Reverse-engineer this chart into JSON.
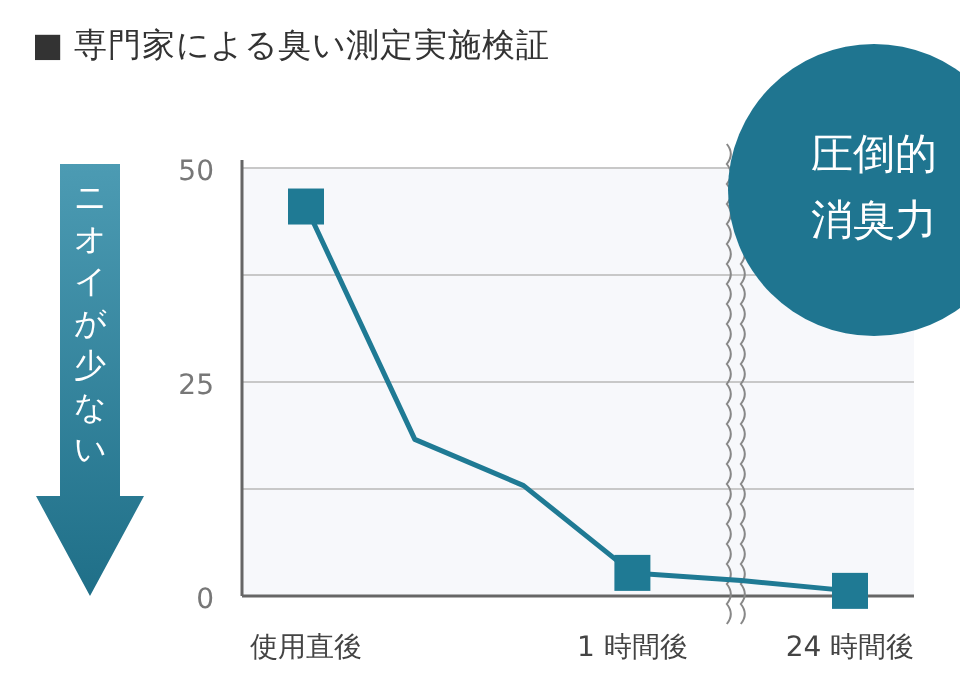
{
  "chart_data": {
    "type": "line",
    "title": "■ 専門家による臭い測定実施検証",
    "categories": [
      "使用直後",
      null,
      null,
      "1 時間後",
      null,
      "24 時間後"
    ],
    "series": [
      {
        "color": "#1f7a94",
        "values": [
          45.5,
          18.3,
          12.9,
          2.7,
          1.8,
          0.6
        ]
      }
    ],
    "ylim": [
      0,
      50
    ],
    "yticks": [
      0,
      {
        "value": 12.5,
        "label": null
      },
      25,
      {
        "value": 37.5,
        "label": null
      },
      50
    ],
    "grid": "y",
    "marker": "square",
    "line_style": "solid",
    "annotations": [
      "ニオイが少ない",
      "圧倒的消臭力"
    ]
  }
}
